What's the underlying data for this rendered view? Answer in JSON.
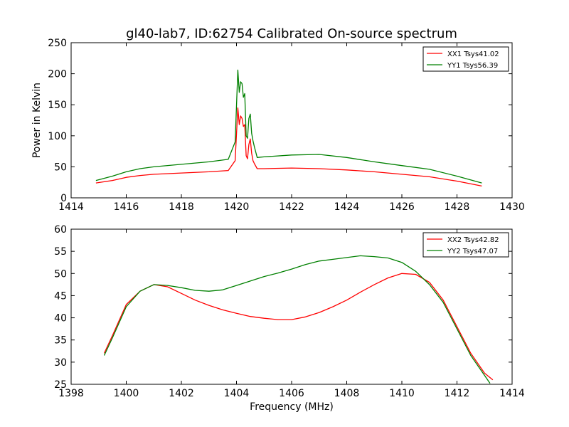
{
  "title": "gl40-lab7, ID:62754 Calibrated On-source spectrum",
  "chart_data": [
    {
      "type": "line",
      "xlabel": "",
      "ylabel": "Power in Kelvin",
      "xlim": [
        1414,
        1430
      ],
      "ylim": [
        0,
        250
      ],
      "xticks": [
        1414,
        1416,
        1418,
        1420,
        1422,
        1424,
        1426,
        1428,
        1430
      ],
      "yticks": [
        0,
        50,
        100,
        150,
        200,
        250
      ],
      "legend_position": "top-right",
      "series": [
        {
          "name": "XX1 Tsys41.02",
          "color": "#ff0000",
          "x": [
            1414.9,
            1415.5,
            1416,
            1416.5,
            1417,
            1418,
            1419,
            1419.7,
            1419.95,
            1420.05,
            1420.1,
            1420.15,
            1420.2,
            1420.25,
            1420.3,
            1420.35,
            1420.4,
            1420.45,
            1420.5,
            1420.55,
            1420.6,
            1420.65,
            1420.75,
            1421,
            1422,
            1423,
            1424,
            1425,
            1426,
            1427,
            1428,
            1428.9
          ],
          "y": [
            24,
            28,
            33,
            36,
            38,
            40,
            42,
            44,
            60,
            145,
            118,
            132,
            128,
            115,
            118,
            68,
            63,
            86,
            95,
            72,
            60,
            55,
            47,
            47,
            48,
            47,
            45,
            42,
            38,
            34,
            27,
            19
          ]
        },
        {
          "name": "YY1 Tsys56.39",
          "color": "#008000",
          "x": [
            1414.9,
            1415.5,
            1416,
            1416.5,
            1417,
            1418,
            1419,
            1419.7,
            1419.95,
            1420.05,
            1420.1,
            1420.15,
            1420.2,
            1420.25,
            1420.3,
            1420.35,
            1420.4,
            1420.45,
            1420.5,
            1420.55,
            1420.6,
            1420.65,
            1420.75,
            1421,
            1422,
            1423,
            1424,
            1425,
            1426,
            1427,
            1428,
            1428.9
          ],
          "y": [
            28,
            35,
            42,
            47,
            50,
            54,
            58,
            62,
            90,
            206,
            170,
            187,
            184,
            162,
            168,
            100,
            96,
            128,
            135,
            104,
            92,
            82,
            65,
            66,
            69,
            70,
            65,
            58,
            52,
            46,
            35,
            24
          ]
        }
      ]
    },
    {
      "type": "line",
      "xlabel": "Frequency (MHz)",
      "ylabel": "",
      "xlim": [
        1398,
        1414
      ],
      "ylim": [
        25,
        60
      ],
      "xticks": [
        1398,
        1400,
        1402,
        1404,
        1406,
        1408,
        1410,
        1412,
        1414
      ],
      "yticks": [
        25,
        30,
        35,
        40,
        45,
        50,
        55,
        60
      ],
      "legend_position": "top-right",
      "series": [
        {
          "name": "XX2 Tsys42.82",
          "color": "#ff0000",
          "x": [
            1399.2,
            1399.5,
            1400,
            1400.5,
            1401,
            1401.5,
            1402,
            1402.5,
            1403,
            1403.5,
            1404,
            1404.5,
            1405,
            1405.5,
            1406,
            1406.5,
            1407,
            1407.5,
            1408,
            1408.5,
            1409,
            1409.5,
            1410,
            1410.5,
            1411,
            1411.5,
            1412,
            1412.5,
            1413,
            1413.3
          ],
          "y": [
            32,
            36,
            43,
            46,
            47.5,
            47,
            45.5,
            44,
            42.8,
            41.8,
            41,
            40.3,
            39.9,
            39.6,
            39.6,
            40.2,
            41.2,
            42.5,
            44,
            45.8,
            47.5,
            49,
            50,
            49.8,
            48,
            44,
            38,
            32,
            27.5,
            26
          ]
        },
        {
          "name": "YY2 Tsys47.07",
          "color": "#008000",
          "x": [
            1399.2,
            1399.5,
            1400,
            1400.5,
            1401,
            1401.5,
            1402,
            1402.5,
            1403,
            1403.5,
            1404,
            1404.5,
            1405,
            1405.5,
            1406,
            1406.5,
            1407,
            1407.5,
            1408,
            1408.5,
            1409,
            1409.5,
            1410,
            1410.5,
            1411,
            1411.5,
            1412,
            1412.5,
            1413,
            1413.2
          ],
          "y": [
            31.5,
            35.5,
            42.5,
            46,
            47.5,
            47.3,
            46.8,
            46.2,
            46,
            46.3,
            47.3,
            48.3,
            49.3,
            50.1,
            51,
            52,
            52.8,
            53.2,
            53.6,
            54,
            53.8,
            53.5,
            52.5,
            50.5,
            47.5,
            43.5,
            37.5,
            31.5,
            27,
            25.2
          ]
        }
      ]
    }
  ]
}
